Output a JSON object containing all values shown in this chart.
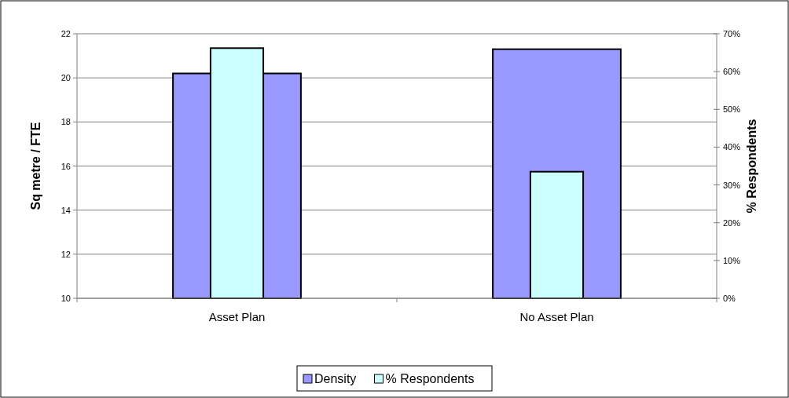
{
  "chart_data": {
    "type": "bar",
    "categories": [
      "Asset Plan",
      "No Asset Plan"
    ],
    "series": [
      {
        "name": "Density",
        "color": "#9999ff",
        "values": [
          20.2,
          21.3
        ]
      },
      {
        "name": "% Respondents",
        "color": "#ccffff",
        "values": [
          66.2,
          33.5
        ],
        "axis": "y2"
      }
    ],
    "ylabel": "Sq metre / FTE",
    "y2label": "% Respondents",
    "ylim": [
      10,
      22
    ],
    "yticks": [
      10,
      12,
      14,
      16,
      18,
      20,
      22
    ],
    "y2lim": [
      0,
      70
    ],
    "y2ticks": [
      {
        "value": 0,
        "label": "0%"
      },
      {
        "value": 10,
        "label": "10%"
      },
      {
        "value": 20,
        "label": "20%"
      },
      {
        "value": 30,
        "label": "30%"
      },
      {
        "value": 40,
        "label": "40%"
      },
      {
        "value": 50,
        "label": "50%"
      },
      {
        "value": 60,
        "label": "60%"
      },
      {
        "value": 70,
        "label": "70%"
      }
    ],
    "grid": "y",
    "legend": "bottom"
  }
}
